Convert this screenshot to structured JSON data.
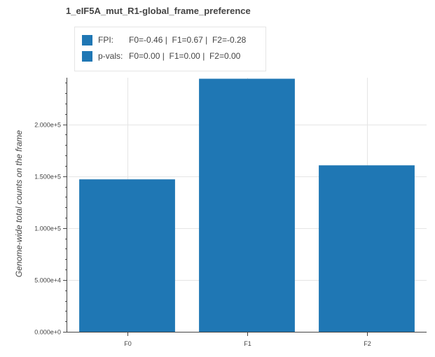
{
  "chart_data": {
    "type": "bar",
    "title": "1_eIF5A_mut_R1-global_frame_preference",
    "categories": [
      "F0",
      "F1",
      "F2"
    ],
    "values": [
      147000,
      244000,
      160500
    ],
    "color": "#1f77b4",
    "ylabel": "Genome-wide total counts on the frame",
    "xlabel": "",
    "ylim": [
      0,
      245000
    ],
    "yticks": [
      0,
      50000,
      100000,
      150000,
      200000
    ],
    "ytick_labels": [
      "0.000e+0",
      "5.000e+4",
      "1.000e+5",
      "1.500e+5",
      "2.000e+5"
    ],
    "grid": true,
    "legend": {
      "placement": "top-left",
      "entries": [
        {
          "label": "FPI:",
          "value": "F0=-0.46 |  F1=0.67 |  F2=-0.28"
        },
        {
          "label": "p-vals:",
          "value": "F0=0.00 |  F1=0.00 |  F2=0.00"
        }
      ]
    }
  }
}
